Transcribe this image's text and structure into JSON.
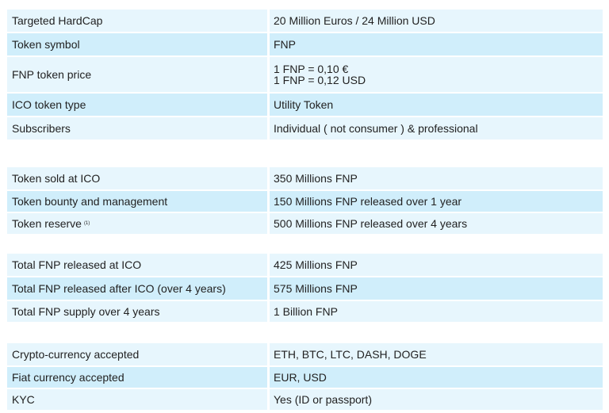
{
  "groups": [
    {
      "rows": [
        {
          "label": "Targeted HardCap",
          "value": "20 Million Euros / 24 Million USD"
        },
        {
          "label": "Token symbol",
          "value": "FNP"
        },
        {
          "label": "FNP token price",
          "values": [
            "1 FNP = 0,10 €",
            "1 FNP = 0,12 USD"
          ]
        },
        {
          "label": "ICO token type",
          "value": "Utility Token"
        },
        {
          "label": "Subscribers",
          "value": "Individual ( not consumer ) & professional"
        }
      ]
    },
    {
      "rows": [
        {
          "label": "Token sold at ICO",
          "value": "350 Millions FNP"
        },
        {
          "label": "Token bounty and management",
          "value": "150 Millions FNP released over 1 year"
        },
        {
          "label": "Token reserve",
          "note": "(1)",
          "value": "500 Millions FNP released over 4 years"
        }
      ]
    },
    {
      "rows": [
        {
          "label": "Total FNP released at ICO",
          "value": "425 Millions FNP"
        },
        {
          "label": "Total FNP released after ICO (over 4 years)",
          "value": "575 Millions FNP"
        },
        {
          "label": "Total FNP supply over 4 years",
          "value": "1 Billion FNP"
        }
      ]
    },
    {
      "rows": [
        {
          "label": "Crypto-currency accepted",
          "value": "ETH, BTC, LTC, DASH, DOGE"
        },
        {
          "label": "Fiat currency accepted",
          "value": "EUR, USD"
        },
        {
          "label": "KYC",
          "value": "Yes (ID or passport)"
        }
      ]
    }
  ]
}
